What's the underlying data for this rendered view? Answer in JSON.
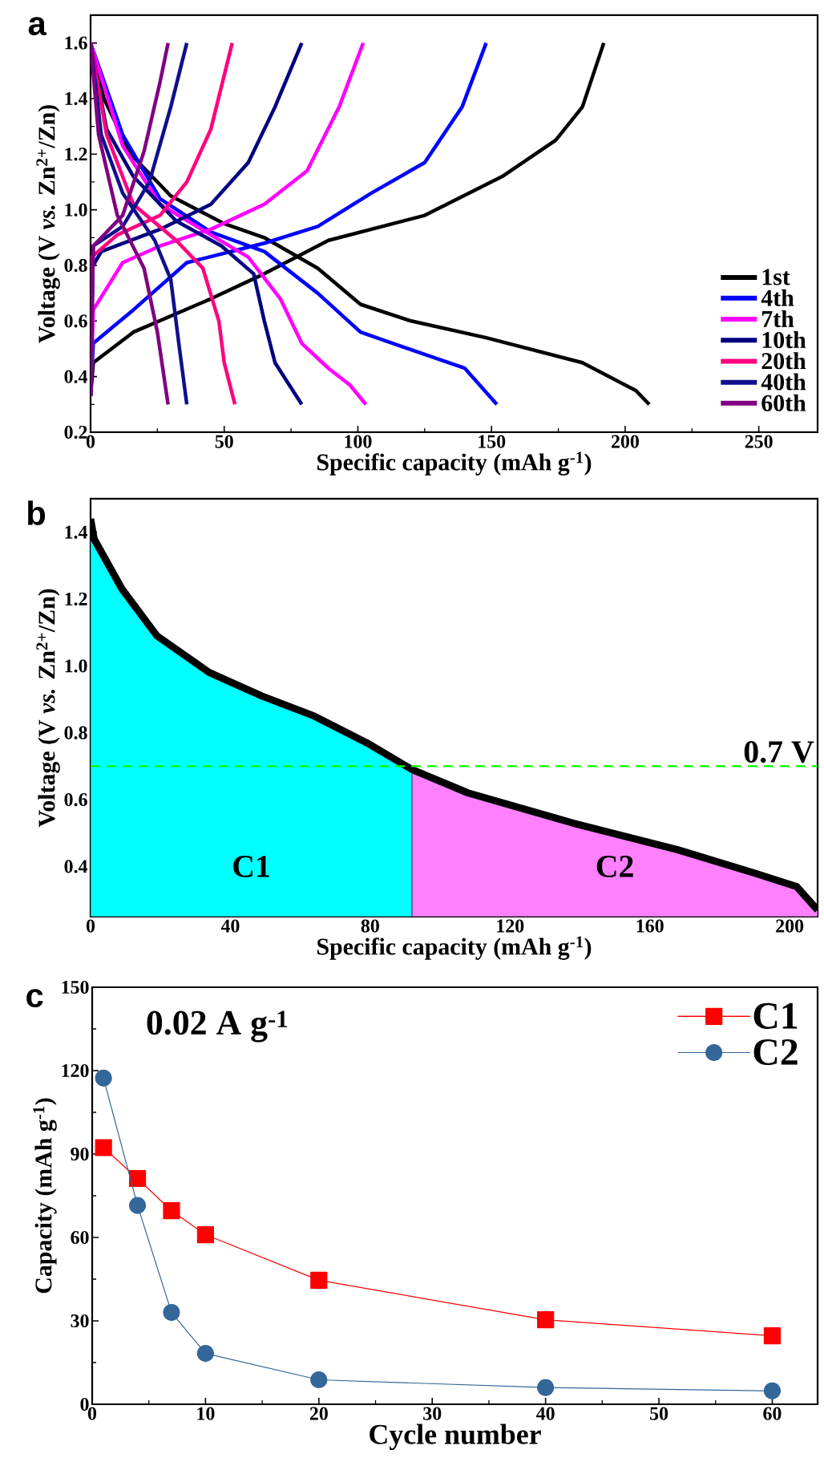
{
  "chart_data": [
    {
      "type": "line",
      "xlabel": "Specific capacity (mAh g$^{-1}$)",
      "ylabel": "Voltage (V *vs.* Zn$^{2+}$/Zn)",
      "annotations": [
        "a"
      ],
      "xlim": [
        0,
        272
      ],
      "ylim": [
        0.2,
        1.7
      ],
      "xticks": [
        0,
        50,
        100,
        150,
        200,
        250
      ],
      "yticks": [
        0.2,
        0.4,
        0.6,
        0.8,
        {
          "value": 1.0,
          "label": "1.0"
        },
        1.2,
        1.4,
        1.6
      ],
      "legend": "bottom right",
      "series": [
        {
          "name": "1st",
          "color": "#000000",
          "x": [
            0,
            5,
            15,
            30,
            50,
            65,
            85,
            101,
            120,
            148,
            184,
            204,
            209
          ],
          "values": [
            1.6,
            1.4,
            1.2,
            1.05,
            0.95,
            0.9,
            0.79,
            0.66,
            0.6,
            0.54,
            0.45,
            0.35,
            0.3
          ]
        },
        {
          "color": "#000000",
          "x": [
            0,
            1,
            16,
            45,
            65,
            89,
            125,
            154,
            174,
            184,
            192
          ],
          "values": [
            0.33,
            0.45,
            0.56,
            0.68,
            0.77,
            0.89,
            0.98,
            1.12,
            1.25,
            1.37,
            1.6
          ]
        },
        {
          "name": "4th",
          "color": "#0000ff",
          "x": [
            0,
            12,
            26,
            45,
            65,
            85,
            101,
            125,
            140,
            152
          ],
          "values": [
            1.6,
            1.27,
            1.04,
            0.92,
            0.85,
            0.7,
            0.56,
            0.48,
            0.43,
            0.3
          ]
        },
        {
          "color": "#0000ff",
          "x": [
            0,
            1,
            16,
            36,
            65,
            85,
            105,
            125,
            139,
            148
          ],
          "values": [
            0.33,
            0.52,
            0.64,
            0.81,
            0.88,
            0.94,
            1.06,
            1.17,
            1.37,
            1.6
          ]
        },
        {
          "name": "7th",
          "color": "#ff00ff",
          "x": [
            0,
            12,
            26,
            45,
            59,
            71,
            79,
            89,
            97,
            103
          ],
          "values": [
            1.6,
            1.23,
            1.02,
            0.91,
            0.83,
            0.68,
            0.52,
            0.43,
            0.37,
            0.3
          ]
        },
        {
          "color": "#ff00ff",
          "x": [
            0,
            1,
            12,
            26,
            45,
            65,
            81,
            93,
            102
          ],
          "values": [
            0.33,
            0.64,
            0.81,
            0.87,
            0.93,
            1.02,
            1.14,
            1.37,
            1.6
          ]
        },
        {
          "name": "10th",
          "color": "#000080",
          "x": [
            0,
            6,
            16,
            32,
            49,
            61,
            65,
            69,
            79
          ],
          "values": [
            1.6,
            1.29,
            1.12,
            0.96,
            0.87,
            0.77,
            0.6,
            0.45,
            0.3
          ]
        },
        {
          "color": "#000080",
          "x": [
            0,
            0.4,
            4,
            26,
            45,
            59,
            69,
            79
          ],
          "values": [
            0.33,
            0.79,
            0.85,
            0.93,
            1.02,
            1.17,
            1.37,
            1.6
          ]
        },
        {
          "name": "20th",
          "color": "#ff0080",
          "x": [
            0,
            6,
            16,
            32,
            42,
            48,
            50,
            54
          ],
          "values": [
            1.6,
            1.27,
            1.02,
            0.89,
            0.79,
            0.6,
            0.45,
            0.3
          ]
        },
        {
          "color": "#ff0080",
          "x": [
            0,
            0.4,
            10,
            26,
            36,
            45,
            53
          ],
          "values": [
            0.33,
            0.83,
            0.91,
            0.98,
            1.1,
            1.29,
            1.6
          ]
        },
        {
          "name": "40th",
          "color": "#10108c",
          "x": [
            0,
            4,
            12,
            24,
            30,
            33,
            36
          ],
          "values": [
            1.6,
            1.27,
            1.06,
            0.89,
            0.75,
            0.52,
            0.3
          ]
        },
        {
          "color": "#10108c",
          "x": [
            0,
            1,
            12,
            22,
            30,
            36
          ],
          "values": [
            0.33,
            0.87,
            0.94,
            1.1,
            1.37,
            1.6
          ]
        },
        {
          "name": "60th",
          "color": "#800080",
          "x": [
            0,
            3,
            10,
            20,
            25,
            29
          ],
          "values": [
            1.6,
            1.27,
            0.98,
            0.79,
            0.56,
            0.3
          ]
        },
        {
          "color": "#800080",
          "x": [
            0,
            1,
            12,
            20,
            26,
            29
          ],
          "values": [
            0.33,
            0.87,
            0.98,
            1.21,
            1.46,
            1.6
          ]
        }
      ]
    },
    {
      "type": "line",
      "xlabel": "Specific capacity (mAh g$^{-1}$)",
      "ylabel": "Voltage (V *vs.* Zn$^{2+}$/Zn)",
      "annotations": [
        "b"
      ],
      "xlim": [
        0,
        208
      ],
      "ylim": [
        0.25,
        1.5
      ],
      "xticks": [
        0,
        40,
        80,
        120,
        160,
        200
      ],
      "yticks": [
        0.4,
        0.6,
        0.8,
        {
          "value": 1.0,
          "label": "1.0"
        },
        1.2,
        1.4
      ],
      "ref_lines": [
        {
          "axis": "y",
          "value": 0.7,
          "label": "0.7 V",
          "color": "#00ff00",
          "line_style": "dashed"
        }
      ],
      "series": [
        {
          "type": "area",
          "name": "C1",
          "color": "#00ffff",
          "x": [
            0,
            1,
            9,
            19,
            34,
            49,
            64,
            79,
            92
          ],
          "values": [
            1.44,
            1.38,
            1.23,
            1.09,
            0.98,
            0.91,
            0.85,
            0.77,
            0.69
          ]
        },
        {
          "type": "area",
          "name": "C2",
          "color": "#ff80ff",
          "x": [
            92,
            108,
            138,
            168,
            190,
            202,
            208
          ],
          "values": [
            0.69,
            0.62,
            0.53,
            0.45,
            0.38,
            0.34,
            0.27
          ]
        },
        {
          "color": "#000000",
          "x": [
            0,
            1,
            9,
            19,
            34,
            49,
            64,
            79,
            92,
            108,
            138,
            168,
            190,
            202,
            208
          ],
          "values": [
            1.44,
            1.38,
            1.23,
            1.09,
            0.98,
            0.91,
            0.85,
            0.77,
            0.69,
            0.62,
            0.53,
            0.45,
            0.38,
            0.34,
            0.27
          ]
        }
      ]
    },
    {
      "type": "line",
      "xlabel": "Cycle number",
      "ylabel": "Capacity (mAh g$^{-1}$)",
      "annotations": [
        "c",
        "0.02 A g$^{-1}$"
      ],
      "xlim": [
        0,
        64
      ],
      "ylim": [
        0,
        150
      ],
      "xticks": [
        0,
        10,
        20,
        30,
        40,
        50,
        60
      ],
      "yticks": [
        0,
        30,
        60,
        90,
        120,
        150
      ],
      "legend": "top right",
      "series": [
        {
          "name": "C1",
          "color": "#ff0000",
          "marker": "square",
          "x": [
            1,
            4,
            7,
            10,
            20,
            40,
            60
          ],
          "values": [
            92.3,
            81.2,
            69.6,
            61,
            44.6,
            30.4,
            24.6
          ]
        },
        {
          "name": "C2",
          "color": "#336699",
          "marker": "circle",
          "x": [
            1,
            4,
            7,
            10,
            20,
            40,
            60
          ],
          "values": [
            117.3,
            71.5,
            33,
            18.3,
            8.8,
            6,
            4.8
          ]
        }
      ]
    }
  ]
}
